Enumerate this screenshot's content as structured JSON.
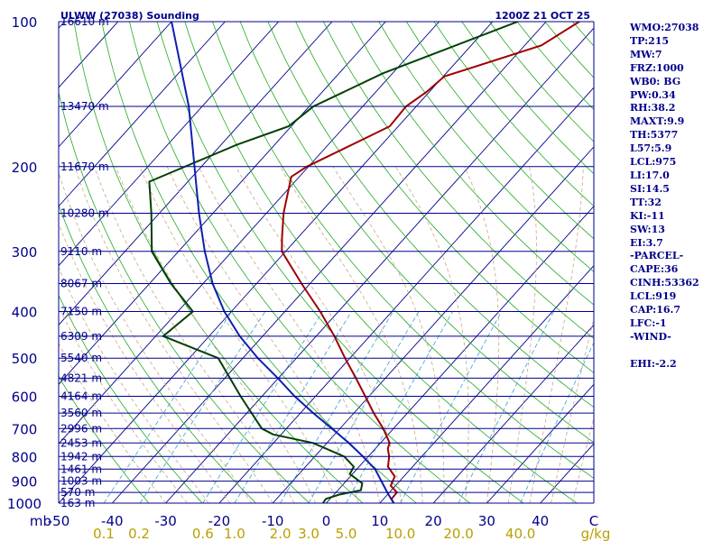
{
  "chart_data": {
    "type": "line",
    "title": "ULWW (27038) Sounding",
    "time_label": "1200Z 21 OCT 25",
    "x_axis": {
      "label": "C",
      "range": [
        -50,
        50
      ],
      "ticks": [
        -50,
        -40,
        -30,
        -20,
        -10,
        0,
        10,
        20,
        30,
        40
      ],
      "tick_labels": [
        "-50",
        "-40",
        "-30",
        "-20",
        "-10",
        "0",
        "10",
        "20",
        "30",
        "40"
      ]
    },
    "y_axis": {
      "label": "mb",
      "scale": "log",
      "range": [
        1000,
        100
      ],
      "ticks": [
        100,
        200,
        300,
        400,
        500,
        600,
        700,
        800,
        900,
        1000
      ],
      "tick_labels": [
        "100",
        "200",
        "300",
        "400",
        "500",
        "600",
        "700",
        "800",
        "900",
        "1000"
      ]
    },
    "mixing_ratio": {
      "unit": "g/kg",
      "values": [
        0.1,
        0.2,
        0.6,
        1.0,
        2.0,
        3.0,
        5.0,
        10.0,
        20.0,
        40.0
      ],
      "labels": [
        "0.1",
        "0.2",
        "0.6",
        "1.0",
        "2.0",
        "3.0",
        "5.0",
        "10.0",
        "20.0",
        "40.0"
      ]
    },
    "height_labels": [
      {
        "p": 100,
        "label": "16610 m"
      },
      {
        "p": 150,
        "label": "13470 m"
      },
      {
        "p": 200,
        "label": "11670 m"
      },
      {
        "p": 250,
        "label": "10280 m"
      },
      {
        "p": 300,
        "label": "9110 m"
      },
      {
        "p": 350,
        "label": "8067 m"
      },
      {
        "p": 400,
        "label": "7150 m"
      },
      {
        "p": 450,
        "label": "6309 m"
      },
      {
        "p": 500,
        "label": "5540 m"
      },
      {
        "p": 550,
        "label": "4821 m"
      },
      {
        "p": 600,
        "label": "4164 m"
      },
      {
        "p": 650,
        "label": "3560 m"
      },
      {
        "p": 700,
        "label": "2996 m"
      },
      {
        "p": 750,
        "label": "2453 m"
      },
      {
        "p": 800,
        "label": "1942 m"
      },
      {
        "p": 850,
        "label": "1461 m"
      },
      {
        "p": 900,
        "label": "1003 m"
      },
      {
        "p": 950,
        "label": "570 m"
      },
      {
        "p": 1000,
        "label": "163 m"
      }
    ],
    "series": [
      {
        "name": "Temperature",
        "color": "#a00000",
        "points": [
          [
            100,
            -33.8
          ],
          [
            112,
            -36.9
          ],
          [
            130,
            -49.8
          ],
          [
            140,
            -50.5
          ],
          [
            150,
            -51.9
          ],
          [
            165,
            -51.6
          ],
          [
            200,
            -60.3
          ],
          [
            210,
            -61.5
          ],
          [
            250,
            -56.8
          ],
          [
            280,
            -53.1
          ],
          [
            300,
            -50.7
          ],
          [
            350,
            -41.6
          ],
          [
            400,
            -33.4
          ],
          [
            450,
            -26.6
          ],
          [
            500,
            -20.9
          ],
          [
            550,
            -15.5
          ],
          [
            600,
            -10.7
          ],
          [
            650,
            -6.3
          ],
          [
            700,
            -1.9
          ],
          [
            750,
            1.7
          ],
          [
            770,
            2.3
          ],
          [
            800,
            3.9
          ],
          [
            840,
            5.4
          ],
          [
            880,
            8.3
          ],
          [
            920,
            9.1
          ],
          [
            950,
            11.4
          ],
          [
            980,
            11.5
          ],
          [
            1000,
            12.6
          ]
        ]
      },
      {
        "name": "Dewpoint",
        "color": "#004000",
        "points": [
          [
            100,
            -45.3
          ],
          [
            128,
            -61.8
          ],
          [
            150,
            -69.2
          ],
          [
            165,
            -70.5
          ],
          [
            180,
            -77.0
          ],
          [
            215,
            -87.2
          ],
          [
            250,
            -81.5
          ],
          [
            300,
            -75.0
          ],
          [
            350,
            -66.0
          ],
          [
            400,
            -57.2
          ],
          [
            450,
            -58.6
          ],
          [
            500,
            -44.6
          ],
          [
            600,
            -34.0
          ],
          [
            700,
            -24.6
          ],
          [
            720,
            -21.5
          ],
          [
            750,
            -12.6
          ],
          [
            800,
            -4.5
          ],
          [
            840,
            -1.0
          ],
          [
            870,
            -0.5
          ],
          [
            910,
            3.4
          ],
          [
            940,
            4.3
          ],
          [
            960,
            1.0
          ],
          [
            980,
            -0.8
          ],
          [
            1000,
            -0.6
          ]
        ]
      },
      {
        "name": "Parcel",
        "color": "#1020b0",
        "points": [
          [
            100,
            -110.0
          ],
          [
            150,
            -92.5
          ],
          [
            200,
            -81.3
          ],
          [
            250,
            -72.6
          ],
          [
            300,
            -65.1
          ],
          [
            350,
            -58.2
          ],
          [
            400,
            -51.3
          ],
          [
            450,
            -44.3
          ],
          [
            500,
            -37.2
          ],
          [
            550,
            -30.1
          ],
          [
            600,
            -23.9
          ],
          [
            650,
            -17.6
          ],
          [
            700,
            -11.5
          ],
          [
            750,
            -5.9
          ],
          [
            800,
            -1.0
          ],
          [
            850,
            3.4
          ],
          [
            900,
            6.6
          ],
          [
            950,
            9.6
          ],
          [
            1000,
            12.6
          ]
        ]
      }
    ]
  },
  "indices_panel": {
    "lines": [
      "WMO:27038",
      "TP:215",
      "MW:7",
      "FRZ:1000",
      "WB0: BG",
      "PW:0.34",
      "RH:38.2",
      "MAXT:9.9",
      "TH:5377",
      "L57:5.9",
      "LCL:975",
      "LI:17.0",
      "SI:14.5",
      "TT:32",
      "KI:-11",
      "SW:13",
      "EI:3.7",
      "-PARCEL-",
      "CAPE:36",
      "CINH:53362",
      "LCL:919",
      "CAP:16.7",
      "LFC:-1",
      "-WIND-",
      "",
      "EHI:-2.2"
    ]
  }
}
